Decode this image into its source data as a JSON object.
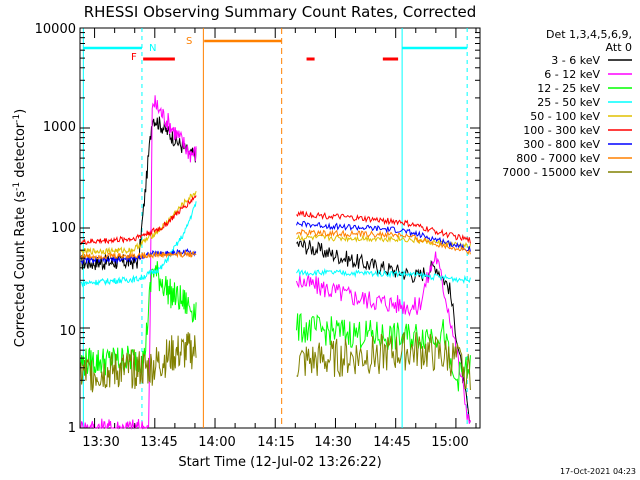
{
  "chart_data": {
    "type": "line",
    "title": "RHESSI Observing Summary Count Rates, Corrected",
    "xlabel": "Start Time (12-Jul-02 13:26:22)",
    "ylabel_main": "Corrected Count Rate (s",
    "ylabel_sup1": "-1",
    "ylabel_mid": " detector",
    "ylabel_sup2": "-1",
    "ylabel_end": ")",
    "y_scale": "log",
    "ylim": [
      1,
      10000
    ],
    "xlim_minutes": [
      13.4,
      15.1
    ],
    "x_ticks": [
      "13:30",
      "13:45",
      "14:00",
      "14:15",
      "14:30",
      "14:45",
      "15:00"
    ],
    "y_ticks": [
      "1",
      "10",
      "100",
      "1000",
      "10000"
    ],
    "legend_header": [
      "Det 1,3,4,5,6,9,",
      "Att 0"
    ],
    "timestamp": "17-Oct-2021 04:23",
    "flags": {
      "F": {
        "label": "F",
        "color": "#ff0000"
      },
      "N": {
        "label": "N",
        "color": "#00ffff"
      },
      "S": {
        "label": "S",
        "color": "#ff8000"
      }
    },
    "series": [
      {
        "name": "3 - 6 keV",
        "color": "#000000"
      },
      {
        "name": "6 - 12 keV",
        "color": "#ff00ff"
      },
      {
        "name": "12 - 25 keV",
        "color": "#00ff00"
      },
      {
        "name": "25 - 50 keV",
        "color": "#00ffff"
      },
      {
        "name": "50 - 100 keV",
        "color": "#e0c000"
      },
      {
        "name": "100 - 300 keV",
        "color": "#ff0000"
      },
      {
        "name": "300 - 800 keV",
        "color": "#0000ff"
      },
      {
        "name": "800 - 7000 keV",
        "color": "#ff8000"
      },
      {
        "name": "7000 - 15000 keV",
        "color": "#808000"
      }
    ]
  }
}
